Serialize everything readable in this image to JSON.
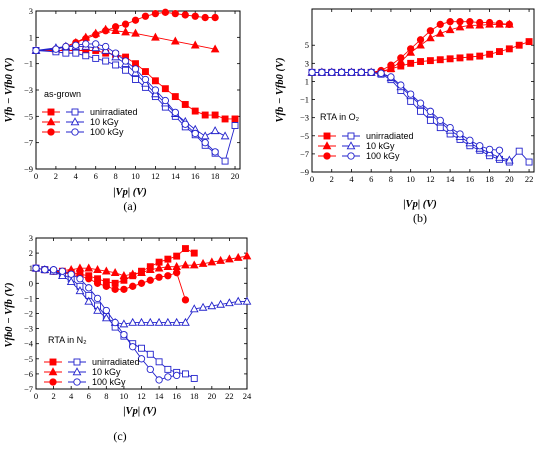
{
  "chart_data": [
    {
      "id": "a",
      "type": "scatter",
      "panel_label": "(a)",
      "condition_label": "as-grown",
      "xlabel": "|Vp| (V)",
      "ylabel": "Vfb − Vfb0 (V)",
      "xlim": [
        0,
        20.5
      ],
      "ylim": [
        -9,
        3
      ],
      "xticks": [
        0,
        2,
        4,
        6,
        8,
        10,
        12,
        14,
        16,
        18,
        20
      ],
      "yticks": [
        3,
        1,
        -1,
        -3,
        -5,
        -7,
        -9
      ],
      "legend_position": "bottom-left",
      "series": [
        {
          "name": "unirradiated",
          "group": "pos",
          "marker": "square",
          "filled": true,
          "color": "#ff0000",
          "x": [
            0,
            2,
            3,
            4,
            5,
            6,
            7,
            8,
            9,
            10,
            11,
            12,
            13,
            14,
            15,
            16,
            17,
            18,
            19,
            20
          ],
          "y": [
            0,
            0,
            0,
            0,
            0,
            0,
            -0.2,
            -0.3,
            -0.5,
            -1.0,
            -1.6,
            -2.3,
            -2.9,
            -3.5,
            -4.1,
            -4.6,
            -4.9,
            -4.9,
            -5.2,
            -5.2
          ]
        },
        {
          "name": "10 kGy",
          "group": "pos",
          "marker": "triangle",
          "filled": true,
          "color": "#ff0000",
          "x": [
            0,
            2,
            3,
            4,
            5,
            6,
            7,
            8,
            9,
            10,
            12,
            14,
            16,
            18
          ],
          "y": [
            0,
            0.1,
            0.3,
            0.6,
            1.0,
            1.3,
            1.6,
            1.5,
            1.4,
            1.3,
            1.0,
            0.7,
            0.4,
            0.1
          ]
        },
        {
          "name": "100 kGy",
          "group": "pos",
          "marker": "circle",
          "filled": true,
          "color": "#ff0000",
          "x": [
            0,
            2,
            3,
            4,
            5,
            6,
            7,
            8,
            9,
            10,
            11,
            12,
            13,
            14,
            15,
            16,
            17,
            18
          ],
          "y": [
            0,
            0.1,
            0.3,
            0.6,
            0.9,
            1.2,
            1.5,
            1.8,
            2.0,
            2.3,
            2.6,
            2.8,
            2.9,
            2.8,
            2.7,
            2.6,
            2.5,
            2.5
          ]
        },
        {
          "name": "unirradiated",
          "group": "neg",
          "marker": "square",
          "filled": false,
          "color": "#2222cc",
          "x": [
            0,
            2,
            3,
            4,
            5,
            6,
            7,
            8,
            9,
            10,
            11,
            12,
            13,
            14,
            15,
            16,
            17,
            18,
            19,
            20
          ],
          "y": [
            0,
            -0.1,
            -0.2,
            -0.2,
            -0.4,
            -0.6,
            -0.8,
            -1.1,
            -1.5,
            -2.2,
            -2.8,
            -3.5,
            -4.3,
            -5.0,
            -5.8,
            -6.4,
            -7.2,
            -7.8,
            -8.4,
            -5.7
          ]
        },
        {
          "name": "10 kGy",
          "group": "neg",
          "marker": "triangle",
          "filled": false,
          "color": "#2222cc",
          "x": [
            0,
            2,
            3,
            4,
            5,
            6,
            7,
            8,
            9,
            10,
            11,
            12,
            13,
            14,
            15,
            16,
            17,
            18,
            19
          ],
          "y": [
            0,
            0.2,
            0.3,
            0.3,
            0.3,
            0.2,
            0,
            -0.5,
            -1.0,
            -1.7,
            -2.5,
            -3.3,
            -4.0,
            -4.8,
            -5.4,
            -6.0,
            -6.5,
            -6.1,
            -6.5
          ]
        },
        {
          "name": "100 kGy",
          "group": "neg",
          "marker": "circle",
          "filled": false,
          "color": "#2222cc",
          "x": [
            0,
            2,
            3,
            4,
            5,
            6,
            7,
            8,
            9,
            10,
            11,
            12,
            13,
            14,
            15,
            16,
            17,
            18
          ],
          "y": [
            0,
            0.1,
            0.3,
            0.4,
            0.5,
            0.5,
            0.3,
            -0.2,
            -0.8,
            -1.4,
            -2.2,
            -3.0,
            -3.8,
            -4.7,
            -5.6,
            -6.3,
            -7.0,
            -7.7
          ]
        }
      ]
    },
    {
      "id": "b",
      "type": "scatter",
      "panel_label": "(b)",
      "condition_label": "RTA in O₂",
      "xlabel": "|Vp| (V)",
      "ylabel": "Vfb − Vfb0 (V)",
      "xlim": [
        0,
        22.5
      ],
      "ylim": [
        -9,
        9
      ],
      "xticks": [
        0,
        2,
        4,
        6,
        8,
        10,
        12,
        14,
        16,
        18,
        20,
        22
      ],
      "yticks": [
        5,
        3,
        1,
        -1,
        -3,
        -5,
        -7,
        -9
      ],
      "legend_position": "bottom-left",
      "series": [
        {
          "name": "unirradiated",
          "group": "pos",
          "marker": "square",
          "filled": true,
          "color": "#ff0000",
          "x": [
            0,
            1,
            2,
            3,
            4,
            5,
            6,
            7,
            8,
            9,
            10,
            11,
            12,
            13,
            14,
            15,
            16,
            17,
            18,
            19,
            20,
            21,
            22
          ],
          "y": [
            2,
            2,
            2,
            2,
            2,
            2,
            2,
            2,
            2.4,
            2.7,
            3.0,
            3.2,
            3.3,
            3.4,
            3.5,
            3.6,
            3.7,
            3.8,
            4.0,
            4.3,
            4.6,
            5.0,
            5.4
          ]
        },
        {
          "name": "10 kGy",
          "group": "pos",
          "marker": "triangle",
          "filled": true,
          "color": "#ff0000",
          "x": [
            0,
            1,
            2,
            3,
            4,
            5,
            6,
            7,
            8,
            9,
            10,
            11,
            12,
            13,
            14,
            15,
            16,
            17,
            18,
            19,
            20
          ],
          "y": [
            2,
            2,
            2,
            2,
            2,
            2,
            2,
            2.1,
            2.4,
            3.2,
            4.2,
            5.0,
            5.8,
            6.3,
            6.7,
            7.0,
            7.2,
            7.2,
            7.3,
            7.3,
            7.3
          ]
        },
        {
          "name": "100 kGy",
          "group": "pos",
          "marker": "circle",
          "filled": true,
          "color": "#ff0000",
          "x": [
            0,
            1,
            2,
            3,
            4,
            5,
            6,
            7,
            8,
            9,
            10,
            11,
            12,
            13,
            14,
            15,
            16,
            17,
            18,
            19,
            20
          ],
          "y": [
            2,
            2,
            2,
            2,
            2,
            2,
            2,
            2.2,
            2.8,
            3.6,
            4.6,
            5.6,
            6.6,
            7.3,
            7.6,
            7.6,
            7.6,
            7.5,
            7.5,
            7.4,
            7.3
          ]
        },
        {
          "name": "unirradiated",
          "group": "neg",
          "marker": "square",
          "filled": false,
          "color": "#2222cc",
          "x": [
            0,
            1,
            2,
            3,
            4,
            5,
            6,
            7,
            8,
            9,
            10,
            11,
            12,
            13,
            14,
            15,
            16,
            17,
            18,
            19,
            20,
            21,
            22
          ],
          "y": [
            2,
            2,
            2,
            2,
            2,
            2,
            2,
            1.8,
            1.2,
            0,
            -1.2,
            -2.3,
            -3.3,
            -4.1,
            -4.8,
            -5.4,
            -6.1,
            -6.6,
            -7.2,
            -7.6,
            -7.9,
            -6.7,
            -7.9
          ]
        },
        {
          "name": "10 kGy",
          "group": "neg",
          "marker": "triangle",
          "filled": false,
          "color": "#2222cc",
          "x": [
            0,
            1,
            2,
            3,
            4,
            5,
            6,
            7,
            8,
            9,
            10,
            11,
            12,
            13,
            14,
            15,
            16,
            17,
            18,
            19,
            20
          ],
          "y": [
            2,
            2,
            2,
            2,
            2,
            2,
            2,
            1.9,
            1.4,
            0.4,
            -0.6,
            -1.6,
            -2.6,
            -3.5,
            -4.4,
            -5.1,
            -5.8,
            -6.4,
            -6.9,
            -7.4,
            -7.7
          ]
        },
        {
          "name": "100 kGy",
          "group": "neg",
          "marker": "circle",
          "filled": false,
          "color": "#2222cc",
          "x": [
            0,
            1,
            2,
            3,
            4,
            5,
            6,
            7,
            8,
            9,
            10,
            11,
            12,
            13,
            14,
            15,
            16,
            17,
            18,
            19
          ],
          "y": [
            2,
            2,
            2,
            2,
            2,
            2,
            2,
            1.9,
            1.5,
            0.6,
            -0.4,
            -1.4,
            -2.3,
            -3.3,
            -4.1,
            -4.8,
            -5.5,
            -6.1,
            -6.5,
            -6.6
          ]
        }
      ]
    },
    {
      "id": "c",
      "type": "scatter",
      "panel_label": "(c)",
      "condition_label": "RTA in N₂",
      "xlabel": "|Vp| (V)",
      "ylabel": "Vfb0 − Vfb (V)",
      "xlim": [
        0,
        24
      ],
      "ylim": [
        -7,
        3
      ],
      "xticks": [
        0,
        2,
        4,
        6,
        8,
        10,
        12,
        14,
        16,
        18,
        20,
        22,
        24
      ],
      "yticks": [
        3,
        2,
        1,
        0,
        -1,
        -2,
        -3,
        -4,
        -5,
        -6,
        -7
      ],
      "legend_position": "bottom-left",
      "series": [
        {
          "name": "unirradiated",
          "group": "pos",
          "marker": "square",
          "filled": true,
          "color": "#ff0000",
          "x": [
            0,
            1,
            2,
            3,
            4,
            5,
            6,
            7,
            8,
            9,
            10,
            11,
            12,
            13,
            14,
            15,
            16,
            17,
            18
          ],
          "y": [
            1,
            0.9,
            0.8,
            0.8,
            0.7,
            0.6,
            0.5,
            0.3,
            0.1,
            0.0,
            0.2,
            0.5,
            0.8,
            1.1,
            1.4,
            1.6,
            1.8,
            2.3,
            2.0
          ]
        },
        {
          "name": "10 kGy",
          "group": "pos",
          "marker": "triangle",
          "filled": true,
          "color": "#ff0000",
          "x": [
            0,
            2,
            4,
            5,
            6,
            7,
            8,
            9,
            10,
            11,
            12,
            13,
            14,
            15,
            16,
            17,
            18,
            19,
            20,
            21,
            22,
            23,
            24
          ],
          "y": [
            1,
            0.8,
            0.9,
            1.0,
            1.0,
            0.9,
            0.8,
            0.7,
            0.5,
            0.6,
            0.7,
            0.9,
            1.0,
            1.1,
            1.1,
            1.2,
            1.2,
            1.3,
            1.4,
            1.5,
            1.6,
            1.7,
            1.8
          ]
        },
        {
          "name": "100 kGy",
          "group": "pos",
          "marker": "circle",
          "filled": true,
          "color": "#ff0000",
          "x": [
            0,
            1,
            2,
            3,
            4,
            5,
            6,
            7,
            8,
            9,
            10,
            11,
            12,
            13,
            14,
            15,
            16,
            17
          ],
          "y": [
            1,
            0.9,
            0.8,
            0.7,
            0.6,
            0.5,
            0.3,
            0.0,
            -0.2,
            -0.4,
            -0.4,
            -0.2,
            0.0,
            0.2,
            0.4,
            0.5,
            0.7,
            -1.1
          ]
        },
        {
          "name": "unirradiated",
          "group": "neg",
          "marker": "square",
          "filled": false,
          "color": "#2222cc",
          "x": [
            0,
            1,
            2,
            3,
            4,
            5,
            6,
            7,
            8,
            9,
            10,
            11,
            12,
            13,
            14,
            15,
            16,
            17,
            18
          ],
          "y": [
            1,
            0.9,
            0.8,
            0.6,
            0.3,
            -0.2,
            -0.8,
            -1.5,
            -2.2,
            -2.9,
            -3.5,
            -4.0,
            -4.3,
            -4.7,
            -5.2,
            -5.7,
            -5.9,
            -6.0,
            -6.3
          ]
        },
        {
          "name": "10 kGy",
          "group": "neg",
          "marker": "triangle",
          "filled": false,
          "color": "#2222cc",
          "x": [
            0,
            1,
            2,
            3,
            4,
            5,
            6,
            7,
            8,
            9,
            10,
            11,
            12,
            13,
            14,
            15,
            16,
            17,
            18,
            19,
            20,
            21,
            22,
            23,
            24
          ],
          "y": [
            1,
            0.9,
            0.8,
            0.5,
            0.1,
            -0.5,
            -1.2,
            -1.8,
            -2.3,
            -2.6,
            -2.7,
            -2.6,
            -2.6,
            -2.6,
            -2.6,
            -2.6,
            -2.6,
            -2.6,
            -1.7,
            -1.6,
            -1.5,
            -1.4,
            -1.3,
            -1.2,
            -1.2
          ]
        },
        {
          "name": "100 kGy",
          "group": "neg",
          "marker": "circle",
          "filled": false,
          "color": "#2222cc",
          "x": [
            0,
            1,
            2,
            3,
            4,
            5,
            6,
            7,
            8,
            9,
            10,
            11,
            12,
            13,
            14,
            15,
            16
          ],
          "y": [
            1,
            0.9,
            0.9,
            0.8,
            0.6,
            0.3,
            -0.3,
            -1.0,
            -1.8,
            -2.6,
            -3.4,
            -4.2,
            -5.0,
            -5.7,
            -6.4,
            -6.2,
            -6.1
          ]
        }
      ]
    }
  ]
}
